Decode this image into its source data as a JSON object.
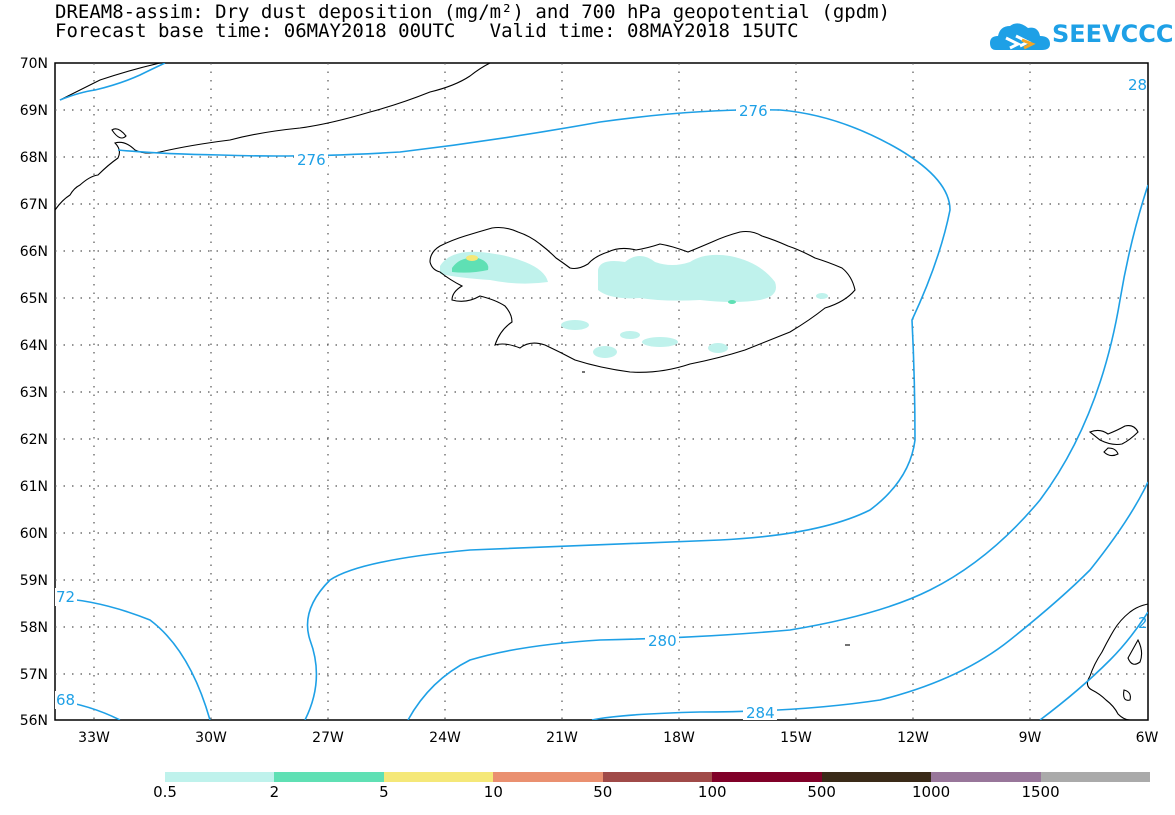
{
  "header": {
    "title_line1": "DREAM8-assim: Dry dust deposition (mg/m²) and 700 hPa geopotential (gpdm)",
    "title_line2": "Forecast base time: 06MAY2018 00UTC   Valid time: 08MAY2018 15UTC",
    "logo_text": "SEEVCCC",
    "logo_icon": "cloud-icon",
    "logo_color": "#1ea0e6"
  },
  "map": {
    "lat_labels": [
      "70N",
      "69N",
      "68N",
      "67N",
      "66N",
      "65N",
      "64N",
      "63N",
      "62N",
      "61N",
      "60N",
      "59N",
      "58N",
      "57N",
      "56N"
    ],
    "lon_labels": [
      "33W",
      "30W",
      "27W",
      "24W",
      "21W",
      "18W",
      "15W",
      "12W",
      "9W",
      "6W"
    ],
    "contour_color": "#1ea0e6",
    "contour_labels": [
      "276",
      "276",
      "280",
      "284",
      "72",
      "68",
      "28",
      "2"
    ]
  },
  "legend": {
    "colors": [
      "#bff2ec",
      "#5fe0b4",
      "#f5e878",
      "#ea9070",
      "#a04a48",
      "#800028",
      "#3a2a18",
      "#98769a",
      "#aaaaaa"
    ],
    "labels": [
      "0.5",
      "2",
      "5",
      "10",
      "50",
      "100",
      "500",
      "1000",
      "1500"
    ]
  }
}
